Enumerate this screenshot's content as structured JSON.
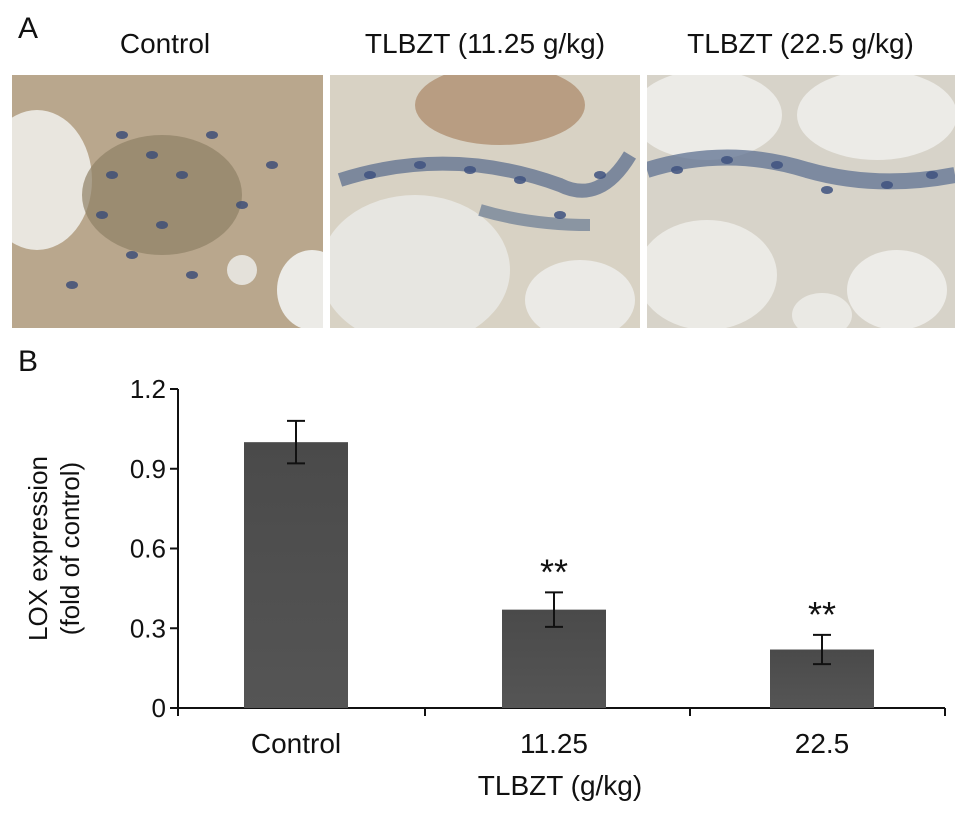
{
  "panel_a": {
    "letter": "A",
    "images": [
      {
        "title": "Control"
      },
      {
        "title": "TLBZT (11.25 g/kg)"
      },
      {
        "title": "TLBZT (22.5 g/kg)"
      }
    ]
  },
  "panel_b": {
    "letter": "B"
  },
  "chart_data": {
    "type": "bar",
    "categories": [
      "Control",
      "11.25",
      "22.5"
    ],
    "values": [
      1.0,
      0.37,
      0.22
    ],
    "errors": [
      0.08,
      0.065,
      0.055
    ],
    "annotations": [
      "",
      "**",
      "**"
    ],
    "ylim": [
      0,
      1.2
    ],
    "yticks": [
      "0",
      "0.3",
      "0.6",
      "0.9",
      "1.2"
    ],
    "ylabel": [
      "LOX expression",
      "(fold of control)"
    ],
    "xlabel": "TLBZT (g/kg)",
    "bar_color": "#555555",
    "grid": false
  }
}
